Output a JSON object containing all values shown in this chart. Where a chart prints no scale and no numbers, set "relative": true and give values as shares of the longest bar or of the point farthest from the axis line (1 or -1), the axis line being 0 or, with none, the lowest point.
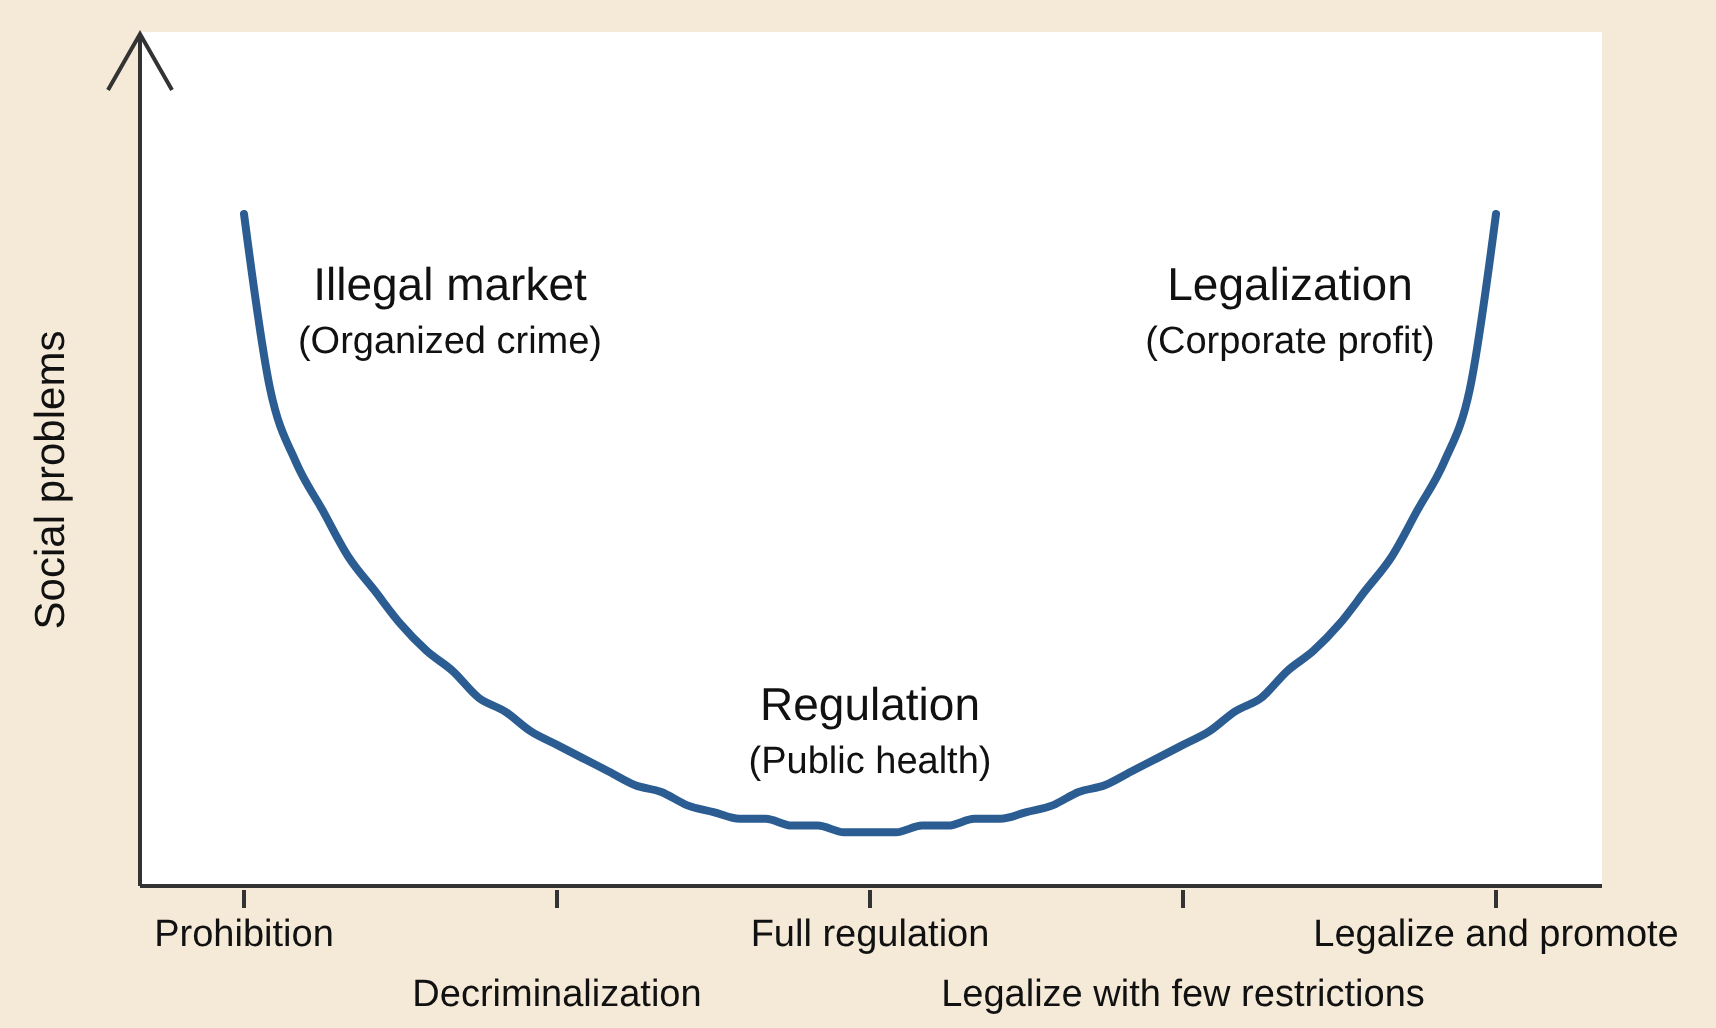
{
  "chart_data": {
    "type": "line",
    "relative": true,
    "ylabel": "Social problems",
    "color": "#2b5d92",
    "categories": [
      "Prohibition",
      null,
      null,
      null,
      null,
      null,
      null,
      null,
      null,
      null,
      null,
      null,
      "Decriminalization",
      null,
      null,
      null,
      null,
      null,
      null,
      null,
      null,
      null,
      null,
      null,
      "Full regulation",
      null,
      null,
      null,
      null,
      null,
      null,
      null,
      null,
      null,
      null,
      null,
      "Legalize with few restrictions",
      null,
      null,
      null,
      null,
      null,
      null,
      null,
      null,
      null,
      null,
      null,
      "Legalize and promote"
    ],
    "values": [
      1,
      0.74,
      0.63,
      0.56,
      0.49,
      0.44,
      0.39,
      0.35,
      0.32,
      0.28,
      0.26,
      0.23,
      0.21,
      0.19,
      0.17,
      0.15,
      0.14,
      0.12,
      0.11,
      0.1,
      0.1,
      0.09,
      0.09,
      0.08,
      0.08,
      0.08,
      0.09,
      0.09,
      0.1,
      0.1,
      0.11,
      0.12,
      0.14,
      0.15,
      0.17,
      0.19,
      0.21,
      0.23,
      0.26,
      0.28,
      0.32,
      0.35,
      0.39,
      0.44,
      0.49,
      0.56,
      0.63,
      0.74,
      1
    ],
    "annotations": [
      "Illegal market",
      "(Organized crime)",
      "Legalization",
      "(Corporate profit)",
      "Regulation",
      "(Public health)"
    ]
  }
}
